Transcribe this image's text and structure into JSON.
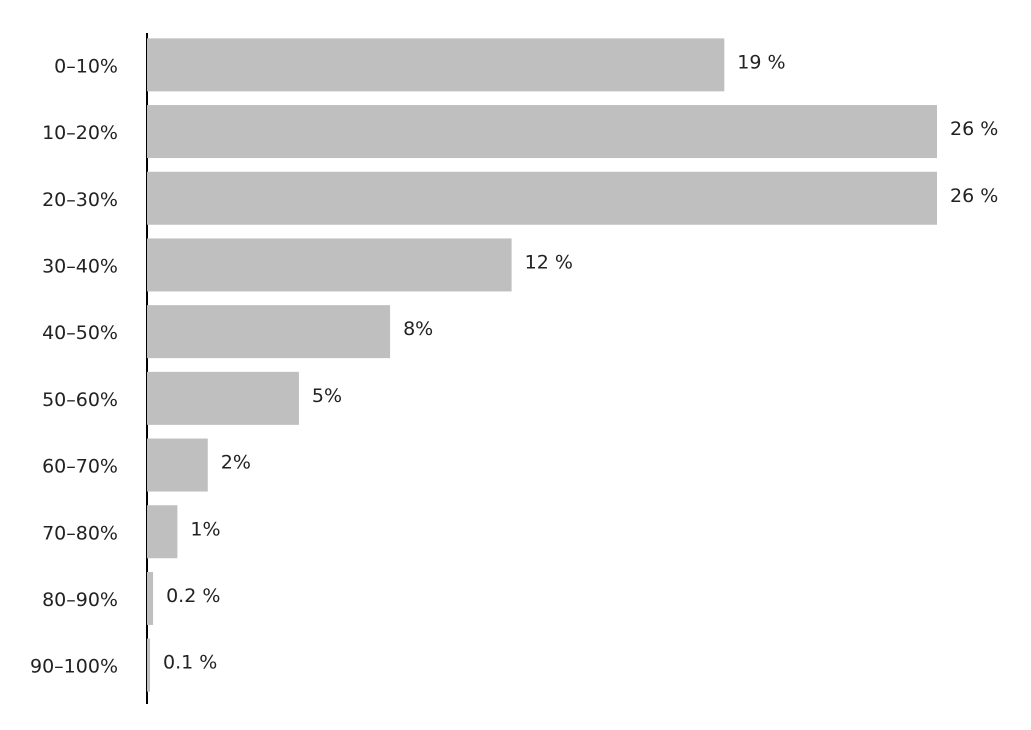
{
  "chart_data": {
    "type": "bar",
    "orientation": "horizontal",
    "categories": [
      "0–10%",
      "10–20%",
      "20–30%",
      "30–40%",
      "40–50%",
      "50–60%",
      "60–70%",
      "70–80%",
      "80–90%",
      "90–100%"
    ],
    "values": [
      19,
      26,
      26,
      12,
      8,
      5,
      2,
      1,
      0.2,
      0.1
    ],
    "value_labels": [
      "19 %",
      "26 %",
      "26 %",
      "12 %",
      "8%",
      "5%",
      "2%",
      "1%",
      "0.2 %",
      "0.1 %"
    ],
    "color": "#bfbfbf"
  }
}
